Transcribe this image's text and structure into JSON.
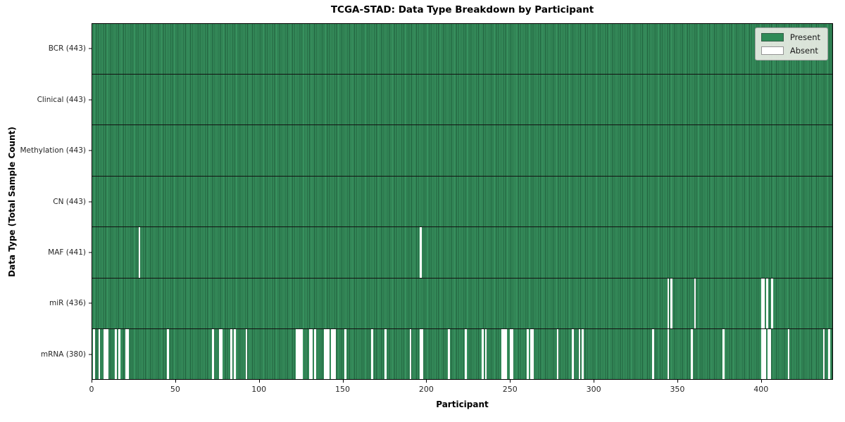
{
  "chart_data": {
    "type": "heatmap",
    "title": "TCGA-STAD: Data Type Breakdown by Participant",
    "xlabel": "Participant",
    "ylabel": "Data Type (Total Sample Count)",
    "n_participants": 443,
    "x_ticks": [
      0,
      50,
      100,
      150,
      200,
      250,
      300,
      350,
      400
    ],
    "x_range": [
      0,
      443
    ],
    "grid": false,
    "colors": {
      "present": "#2e8b57",
      "present_light_stripe": "#38925f",
      "present_dark_edge": "#1e5c3a",
      "absent": "#ffffff",
      "row_separator": "#111111"
    },
    "legend": {
      "position": "upper-right",
      "entries": [
        {
          "name": "present",
          "label": "Present",
          "color": "#2e8b57"
        },
        {
          "name": "absent",
          "label": "Absent",
          "color": "#ffffff"
        }
      ]
    },
    "rows": [
      {
        "name": "bcr",
        "label": "BCR (443)",
        "data_type": "BCR",
        "present_count": 443,
        "absent_participants": []
      },
      {
        "name": "clinical",
        "label": "Clinical (443)",
        "data_type": "Clinical",
        "present_count": 443,
        "absent_participants": []
      },
      {
        "name": "methylation",
        "label": "Methylation (443)",
        "data_type": "Methylation",
        "present_count": 443,
        "absent_participants": []
      },
      {
        "name": "cn",
        "label": "CN (443)",
        "data_type": "CN",
        "present_count": 443,
        "absent_participants": []
      },
      {
        "name": "maf",
        "label": "MAF (441)",
        "data_type": "MAF",
        "present_count": 441,
        "absent_participants": [
          28,
          196
        ]
      },
      {
        "name": "mir",
        "label": "miR (436)",
        "data_type": "miR",
        "present_count": 436,
        "absent_participants": [
          344,
          346,
          360,
          400,
          401,
          403,
          406
        ]
      },
      {
        "name": "mrna",
        "label": "mRNA (380)",
        "data_type": "mRNA",
        "present_count": 380,
        "absent_participants": [
          1,
          4,
          7,
          8,
          9,
          14,
          16,
          20,
          21,
          45,
          72,
          76,
          77,
          83,
          85,
          92,
          122,
          123,
          124,
          125,
          130,
          131,
          133,
          139,
          140,
          141,
          143,
          144,
          145,
          151,
          167,
          175,
          190,
          196,
          197,
          213,
          223,
          233,
          235,
          245,
          246,
          247,
          250,
          251,
          260,
          262,
          263,
          278,
          287,
          291,
          293,
          335,
          344,
          358,
          377,
          400,
          401,
          402,
          404,
          405,
          416,
          437,
          440
        ]
      }
    ]
  }
}
